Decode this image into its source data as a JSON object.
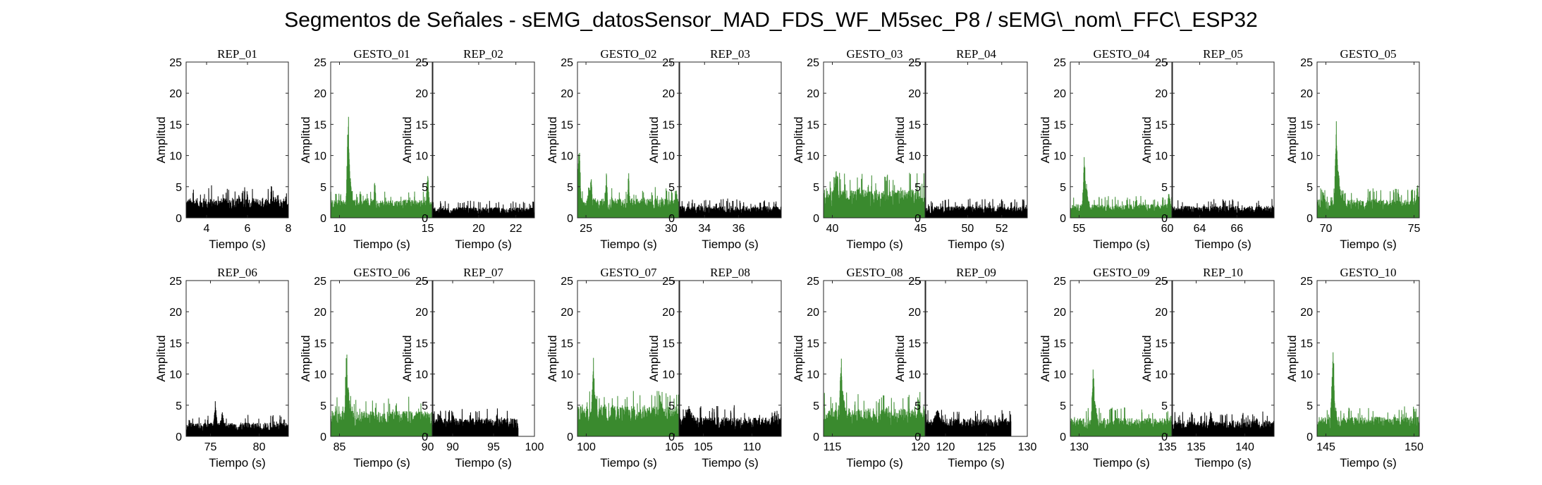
{
  "figure": {
    "title": "Segmentos de Señales - sEMG_datosSensor_MAD_FDS_WF_M5sec_P8 / sEMG\\_nom\\_FFC\\_ESP32",
    "colors": {
      "rep": "#000000",
      "gesto": "#3a8a2e",
      "axes": "#262626"
    }
  },
  "chart_data": [
    {
      "type": "line",
      "title": "REP_01",
      "xlabel": "Tiempo (s)",
      "ylabel": "Amplitud",
      "xlim": [
        3,
        8
      ],
      "ylim": [
        0,
        25
      ],
      "xticks": [
        4,
        6,
        8
      ],
      "yticks": [
        0,
        5,
        10,
        15,
        20,
        25
      ],
      "color": "#000000",
      "signal": {
        "x_start": 3,
        "x_end": 8,
        "baseline": 1.6,
        "noise": 1.4,
        "spikes": [
          [
            6.0,
            4.0,
            0.1
          ]
        ]
      }
    },
    {
      "type": "line",
      "title": "GESTO_01",
      "xlabel": "Tiempo (s)",
      "ylabel": "Amplitud",
      "xlim": [
        9.5,
        15.3
      ],
      "ylim": [
        0,
        25
      ],
      "xticks": [
        10,
        15
      ],
      "yticks": [
        0,
        5,
        10,
        15,
        20,
        25
      ],
      "color": "#3a8a2e",
      "signal": {
        "x_start": 9.5,
        "x_end": 15.3,
        "baseline": 1.8,
        "noise": 1.0,
        "spikes": [
          [
            10.5,
            18.6,
            0.15
          ],
          [
            10.6,
            8.0,
            0.2
          ],
          [
            12.0,
            7.5,
            0.1
          ],
          [
            15.0,
            8.0,
            0.15
          ]
        ]
      }
    },
    {
      "type": "line",
      "title": "REP_02",
      "xlabel": "Tiempo (s)",
      "ylabel": "Amplitud",
      "xlim": [
        17.5,
        23
      ],
      "ylim": [
        0,
        25
      ],
      "xticks": [
        20,
        22
      ],
      "yticks": [
        0,
        5,
        10,
        15,
        20,
        25
      ],
      "color": "#000000",
      "signal": {
        "x_start": 17.5,
        "x_end": 23,
        "baseline": 0.9,
        "noise": 0.7,
        "spikes": []
      }
    },
    {
      "type": "line",
      "title": "GESTO_02",
      "xlabel": "Tiempo (s)",
      "ylabel": "Amplitud",
      "xlim": [
        24.5,
        30.5
      ],
      "ylim": [
        0,
        25
      ],
      "xticks": [
        25,
        30
      ],
      "yticks": [
        0,
        5,
        10,
        15,
        20,
        25
      ],
      "color": "#3a8a2e",
      "signal": {
        "x_start": 24.5,
        "x_end": 30.5,
        "baseline": 1.8,
        "noise": 1.2,
        "spikes": [
          [
            24.6,
            13.0,
            0.15
          ],
          [
            25.3,
            8.5,
            0.1
          ],
          [
            26.2,
            8.5,
            0.1
          ],
          [
            27.5,
            8.0,
            0.1
          ],
          [
            30.3,
            4.5,
            0.3
          ]
        ]
      }
    },
    {
      "type": "line",
      "title": "REP_03",
      "xlabel": "Tiempo (s)",
      "ylabel": "Amplitud",
      "xlim": [
        32.5,
        38.5
      ],
      "ylim": [
        0,
        25
      ],
      "xticks": [
        34,
        36
      ],
      "yticks": [
        0,
        5,
        10,
        15,
        20,
        25
      ],
      "color": "#000000",
      "signal": {
        "x_start": 32.5,
        "x_end": 38.5,
        "baseline": 1.0,
        "noise": 0.8,
        "spikes": []
      }
    },
    {
      "type": "line",
      "title": "GESTO_03",
      "xlabel": "Tiempo (s)",
      "ylabel": "Amplitud",
      "xlim": [
        39.5,
        45.3
      ],
      "ylim": [
        0,
        25
      ],
      "xticks": [
        40,
        45
      ],
      "yticks": [
        0,
        5,
        10,
        15,
        20,
        25
      ],
      "color": "#3a8a2e",
      "signal": {
        "x_start": 39.5,
        "x_end": 45.3,
        "baseline": 2.5,
        "noise": 1.8,
        "spikes": [
          [
            40.2,
            8.5,
            0.2
          ],
          [
            41.5,
            6.0,
            0.3
          ]
        ]
      }
    },
    {
      "type": "line",
      "title": "REP_04",
      "xlabel": "Tiempo (s)",
      "ylabel": "Amplitud",
      "xlim": [
        47.5,
        53.5
      ],
      "ylim": [
        0,
        25
      ],
      "xticks": [
        50,
        52
      ],
      "yticks": [
        0,
        5,
        10,
        15,
        20,
        25
      ],
      "color": "#000000",
      "signal": {
        "x_start": 47.5,
        "x_end": 53.5,
        "baseline": 1.0,
        "noise": 0.8,
        "spikes": []
      }
    },
    {
      "type": "line",
      "title": "GESTO_04",
      "xlabel": "Tiempo (s)",
      "ylabel": "Amplitud",
      "xlim": [
        54.5,
        60.3
      ],
      "ylim": [
        0,
        25
      ],
      "xticks": [
        55,
        60
      ],
      "yticks": [
        0,
        5,
        10,
        15,
        20,
        25
      ],
      "color": "#3a8a2e",
      "signal": {
        "x_start": 54.5,
        "x_end": 60.3,
        "baseline": 1.2,
        "noise": 0.9,
        "spikes": [
          [
            55.3,
            11.0,
            0.15
          ],
          [
            55.4,
            6.0,
            0.3
          ],
          [
            60.1,
            4.5,
            0.2
          ]
        ]
      }
    },
    {
      "type": "line",
      "title": "REP_05",
      "xlabel": "Tiempo (s)",
      "ylabel": "Amplitud",
      "xlim": [
        62.5,
        68
      ],
      "ylim": [
        0,
        25
      ],
      "xticks": [
        64,
        66
      ],
      "yticks": [
        0,
        5,
        10,
        15,
        20,
        25
      ],
      "color": "#000000",
      "signal": {
        "x_start": 62.5,
        "x_end": 68,
        "baseline": 1.0,
        "noise": 0.8,
        "spikes": []
      }
    },
    {
      "type": "line",
      "title": "GESTO_05",
      "xlabel": "Tiempo (s)",
      "ylabel": "Amplitud",
      "xlim": [
        69.5,
        75.3
      ],
      "ylim": [
        0,
        25
      ],
      "xticks": [
        70,
        75
      ],
      "yticks": [
        0,
        5,
        10,
        15,
        20,
        25
      ],
      "color": "#3a8a2e",
      "signal": {
        "x_start": 69.5,
        "x_end": 75.3,
        "baseline": 1.6,
        "noise": 1.2,
        "spikes": [
          [
            70.6,
            16.5,
            0.15
          ],
          [
            70.7,
            8.0,
            0.3
          ],
          [
            75.2,
            5.5,
            0.2
          ]
        ]
      }
    },
    {
      "type": "line",
      "title": "REP_06",
      "xlabel": "Tiempo (s)",
      "ylabel": "Amplitud",
      "xlim": [
        72.5,
        83
      ],
      "ylim": [
        0,
        25
      ],
      "xticks": [
        75,
        80
      ],
      "yticks": [
        0,
        5,
        10,
        15,
        20,
        25
      ],
      "color": "#000000",
      "signal": {
        "x_start": 72.5,
        "x_end": 83,
        "baseline": 1.2,
        "noise": 0.9,
        "spikes": [
          [
            75.5,
            5.8,
            0.3
          ],
          [
            76.2,
            4.0,
            0.5
          ]
        ]
      }
    },
    {
      "type": "line",
      "title": "GESTO_06",
      "xlabel": "Tiempo (s)",
      "ylabel": "Amplitud",
      "xlim": [
        84.5,
        90.3
      ],
      "ylim": [
        0,
        25
      ],
      "xticks": [
        85,
        90
      ],
      "yticks": [
        0,
        5,
        10,
        15,
        20,
        25
      ],
      "color": "#3a8a2e",
      "signal": {
        "x_start": 84.5,
        "x_end": 90.3,
        "baseline": 2.3,
        "noise": 1.6,
        "spikes": [
          [
            85.4,
            16.0,
            0.15
          ],
          [
            85.5,
            8.0,
            0.3
          ]
        ]
      }
    },
    {
      "type": "line",
      "title": "REP_07",
      "xlabel": "Tiempo (s)",
      "ylabel": "Amplitud",
      "xlim": [
        87.5,
        100
      ],
      "ylim": [
        0,
        25
      ],
      "xticks": [
        90,
        95,
        100
      ],
      "yticks": [
        0,
        5,
        10,
        15,
        20,
        25
      ],
      "color": "#000000",
      "signal": {
        "x_start": 87.5,
        "x_end": 98,
        "baseline": 1.7,
        "noise": 1.1,
        "spikes": [
          [
            88.5,
            4.8,
            0.5
          ],
          [
            90,
            4.0,
            0.5
          ]
        ]
      }
    },
    {
      "type": "line",
      "title": "GESTO_07",
      "xlabel": "Tiempo (s)",
      "ylabel": "Amplitud",
      "xlim": [
        99.5,
        105.3
      ],
      "ylim": [
        0,
        25
      ],
      "xticks": [
        100,
        105
      ],
      "yticks": [
        0,
        5,
        10,
        15,
        20,
        25
      ],
      "color": "#3a8a2e",
      "signal": {
        "x_start": 99.5,
        "x_end": 105.3,
        "baseline": 2.8,
        "noise": 1.8,
        "spikes": [
          [
            100.4,
            13.5,
            0.15
          ],
          [
            100.5,
            7.0,
            0.3
          ]
        ]
      }
    },
    {
      "type": "line",
      "title": "REP_08",
      "xlabel": "Tiempo (s)",
      "ylabel": "Amplitud",
      "xlim": [
        102.5,
        113
      ],
      "ylim": [
        0,
        25
      ],
      "xticks": [
        105,
        110
      ],
      "yticks": [
        0,
        5,
        10,
        15,
        20,
        25
      ],
      "color": "#000000",
      "signal": {
        "x_start": 102.5,
        "x_end": 113,
        "baseline": 1.6,
        "noise": 1.3,
        "spikes": [
          [
            103.5,
            5.0,
            1.5
          ]
        ]
      }
    },
    {
      "type": "line",
      "title": "GESTO_08",
      "xlabel": "Tiempo (s)",
      "ylabel": "Amplitud",
      "xlim": [
        114.5,
        120.3
      ],
      "ylim": [
        0,
        25
      ],
      "xticks": [
        115,
        120
      ],
      "yticks": [
        0,
        5,
        10,
        15,
        20,
        25
      ],
      "color": "#3a8a2e",
      "signal": {
        "x_start": 114.5,
        "x_end": 120.3,
        "baseline": 2.5,
        "noise": 1.8,
        "spikes": [
          [
            115.5,
            14.0,
            0.15
          ],
          [
            115.6,
            8.0,
            0.3
          ]
        ]
      }
    },
    {
      "type": "line",
      "title": "REP_09",
      "xlabel": "Tiempo (s)",
      "ylabel": "Amplitud",
      "xlim": [
        117.5,
        130
      ],
      "ylim": [
        0,
        25
      ],
      "xticks": [
        120,
        125,
        130
      ],
      "yticks": [
        0,
        5,
        10,
        15,
        20,
        25
      ],
      "color": "#000000",
      "signal": {
        "x_start": 117.5,
        "x_end": 128,
        "baseline": 1.6,
        "noise": 1.1,
        "spikes": [
          [
            119,
            5.0,
            1.0
          ]
        ]
      }
    },
    {
      "type": "line",
      "title": "GESTO_09",
      "xlabel": "Tiempo (s)",
      "ylabel": "Amplitud",
      "xlim": [
        129.5,
        135.3
      ],
      "ylim": [
        0,
        25
      ],
      "xticks": [
        130,
        135
      ],
      "yticks": [
        0,
        5,
        10,
        15,
        20,
        25
      ],
      "color": "#3a8a2e",
      "signal": {
        "x_start": 129.5,
        "x_end": 135.3,
        "baseline": 1.6,
        "noise": 1.2,
        "spikes": [
          [
            130.8,
            13.0,
            0.15
          ],
          [
            130.9,
            6.0,
            0.3
          ]
        ]
      }
    },
    {
      "type": "line",
      "title": "REP_10",
      "xlabel": "Tiempo (s)",
      "ylabel": "Amplitud",
      "xlim": [
        132.5,
        143
      ],
      "ylim": [
        0,
        25
      ],
      "xticks": [
        135,
        140
      ],
      "yticks": [
        0,
        5,
        10,
        15,
        20,
        25
      ],
      "color": "#000000",
      "signal": {
        "x_start": 132.5,
        "x_end": 143,
        "baseline": 1.4,
        "noise": 1.0,
        "spikes": [
          [
            136.5,
            4.5,
            0.4
          ]
        ]
      }
    },
    {
      "type": "line",
      "title": "GESTO_10",
      "xlabel": "Tiempo (s)",
      "ylabel": "Amplitud",
      "xlim": [
        144.5,
        150.3
      ],
      "ylim": [
        0,
        25
      ],
      "xticks": [
        145,
        150
      ],
      "yticks": [
        0,
        5,
        10,
        15,
        20,
        25
      ],
      "color": "#3a8a2e",
      "signal": {
        "x_start": 144.5,
        "x_end": 150.3,
        "baseline": 1.8,
        "noise": 1.2,
        "spikes": [
          [
            145.4,
            17.2,
            0.15
          ],
          [
            145.5,
            6.0,
            0.3
          ]
        ]
      }
    }
  ]
}
